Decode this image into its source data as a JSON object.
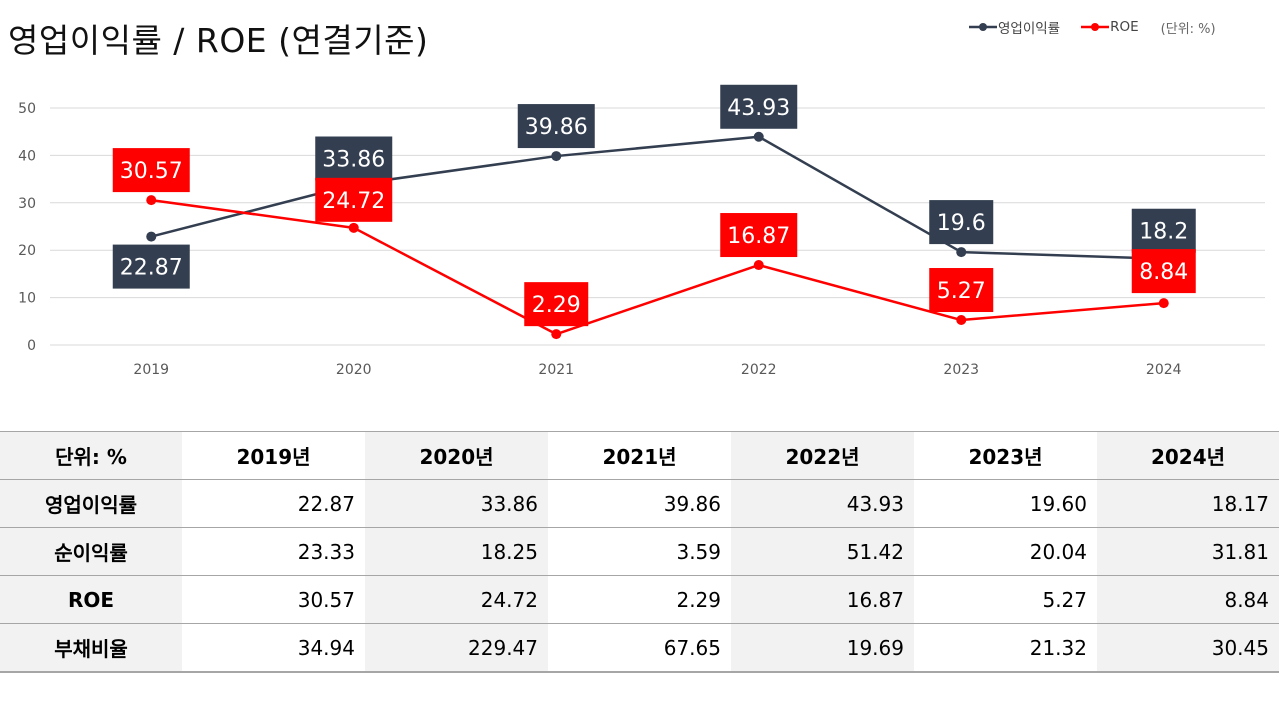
{
  "title": "영업이익률 / ROE (연결기준)",
  "legend": {
    "items": [
      {
        "label": "영업이익률",
        "color": "#333f50"
      },
      {
        "label": "ROE",
        "color": "#ff0000"
      }
    ],
    "unit": "(단위: %)"
  },
  "chart_data": {
    "type": "line",
    "title": "영업이익률 / ROE (연결기준)",
    "xlabel": "",
    "ylabel": "",
    "categories": [
      "2019",
      "2020",
      "2021",
      "2022",
      "2023",
      "2024"
    ],
    "ylim": [
      0,
      50
    ],
    "yticks": [
      "0",
      "10",
      "20",
      "30",
      "40",
      "50"
    ],
    "grid": true,
    "legend_position": "top-right",
    "series": [
      {
        "name": "영업이익률",
        "color": "#333f50",
        "values": [
          22.87,
          33.86,
          39.86,
          43.93,
          19.6,
          18.2
        ],
        "labels": [
          "22.87",
          "33.86",
          "39.86",
          "43.93",
          "19.6",
          "18.2"
        ],
        "label_pos": [
          "below",
          "above",
          "above",
          "above",
          "above",
          "above"
        ]
      },
      {
        "name": "ROE",
        "color": "#ff0000",
        "values": [
          30.57,
          24.72,
          2.29,
          16.87,
          5.27,
          8.84
        ],
        "labels": [
          "30.57",
          "24.72",
          "2.29",
          "16.87",
          "5.27",
          "8.84"
        ],
        "label_pos": [
          "above",
          "above",
          "above",
          "above",
          "above",
          "above"
        ]
      }
    ]
  },
  "table": {
    "header": [
      "단위: %",
      "2019년",
      "2020년",
      "2021년",
      "2022년",
      "2023년",
      "2024년"
    ],
    "rows": [
      {
        "label": "영업이익률",
        "values": [
          "22.87",
          "33.86",
          "39.86",
          "43.93",
          "19.60",
          "18.17"
        ]
      },
      {
        "label": "순이익률",
        "values": [
          "23.33",
          "18.25",
          "3.59",
          "51.42",
          "20.04",
          "31.81"
        ]
      },
      {
        "label": "ROE",
        "values": [
          "30.57",
          "24.72",
          "2.29",
          "16.87",
          "5.27",
          "8.84"
        ]
      },
      {
        "label": "부채비율",
        "values": [
          "34.94",
          "229.47",
          "67.65",
          "19.69",
          "21.32",
          "30.45"
        ]
      }
    ]
  }
}
